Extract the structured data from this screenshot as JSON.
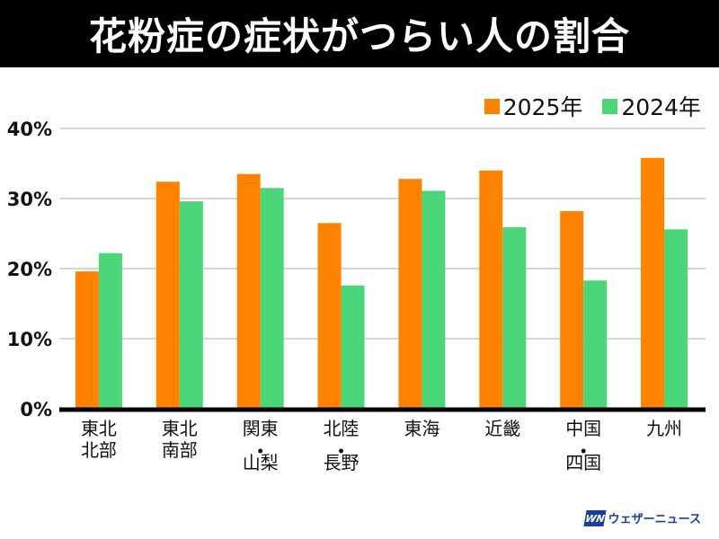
{
  "header": {
    "title": "花粉症の症状がつらい人の割合"
  },
  "legend": [
    {
      "label": "2025年",
      "color": "#ff8200"
    },
    {
      "label": "2024年",
      "color": "#4cd67a"
    }
  ],
  "logo": {
    "mark": "WN",
    "text": "ウェザーニュース"
  },
  "chart_data": {
    "type": "bar",
    "title": "花粉症の症状がつらい人の割合",
    "xlabel": "",
    "ylabel": "",
    "ylim": [
      0,
      40
    ],
    "yticks": [
      0,
      10,
      20,
      30,
      40
    ],
    "ytick_labels": [
      "0%",
      "10%",
      "20%",
      "30%",
      "40%"
    ],
    "grid": true,
    "legend_position": "top-right",
    "categories": [
      [
        "東北",
        "北部"
      ],
      [
        "東北",
        "南部"
      ],
      [
        "関東",
        "・",
        "山梨"
      ],
      [
        "北陸",
        "・",
        "長野"
      ],
      [
        "東海"
      ],
      [
        "近畿"
      ],
      [
        "中国",
        "・",
        "四国"
      ],
      [
        "九州"
      ]
    ],
    "series": [
      {
        "name": "2025年",
        "color": "#ff8200",
        "values": [
          19.6,
          32.4,
          33.5,
          26.5,
          32.8,
          34.0,
          28.2,
          35.8
        ]
      },
      {
        "name": "2024年",
        "color": "#4cd67a",
        "values": [
          22.2,
          29.6,
          31.5,
          17.6,
          31.1,
          25.9,
          18.3,
          25.6
        ]
      }
    ]
  }
}
